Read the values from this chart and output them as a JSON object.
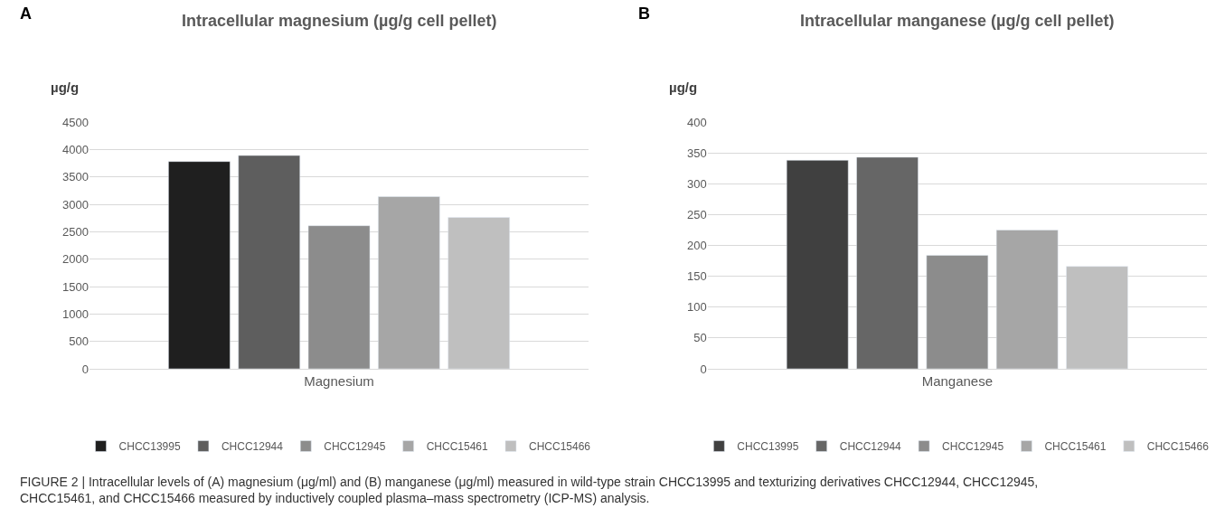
{
  "chart_data": [
    {
      "type": "bar",
      "title": "Intracellular magnesium (µg/g cell pellet)",
      "ylabel": "µg/g",
      "categories": [
        "Magnesium"
      ],
      "series": [
        {
          "name": "CHCC13995",
          "color": "#1f1f1f",
          "values": [
            3780
          ]
        },
        {
          "name": "CHCC12944",
          "color": "#5e5e5e",
          "values": [
            3890
          ]
        },
        {
          "name": "CHCC12945",
          "color": "#8c8c8c",
          "values": [
            2610
          ]
        },
        {
          "name": "CHCC15461",
          "color": "#a6a6a6",
          "values": [
            3140
          ]
        },
        {
          "name": "CHCC15466",
          "color": "#bfbfbf",
          "values": [
            2760
          ]
        }
      ],
      "ylim": [
        0,
        4500
      ],
      "yticks": [
        0,
        500,
        1000,
        1500,
        2000,
        2500,
        3000,
        3500,
        4000,
        4500
      ],
      "grid": "y",
      "legend": "bottom",
      "annotations": [
        "A",
        "FIGURE 2 | Intracellular levels of (A) magnesium (μg/ml) and (B) manganese (μg/ml) measured in wild-type strain CHCC13995 and texturizing derivatives CHCC12944, CHCC12945, CHCC15461, and CHCC15466 measured by inductively coupled plasma–mass spectrometry (ICP-MS) analysis."
      ]
    },
    {
      "type": "bar",
      "title": "Intracellular manganese (µg/g cell pellet)",
      "ylabel": "µg/g",
      "categories": [
        "Manganese"
      ],
      "series": [
        {
          "name": "CHCC13995",
          "color": "#404040",
          "values": [
            338
          ]
        },
        {
          "name": "CHCC12944",
          "color": "#666666",
          "values": [
            343
          ]
        },
        {
          "name": "CHCC12945",
          "color": "#8c8c8c",
          "values": [
            184
          ]
        },
        {
          "name": "CHCC15461",
          "color": "#a6a6a6",
          "values": [
            225
          ]
        },
        {
          "name": "CHCC15466",
          "color": "#bfbfbf",
          "values": [
            166
          ]
        }
      ],
      "ylim": [
        0,
        400
      ],
      "yticks": [
        0,
        50,
        100,
        150,
        200,
        250,
        300,
        350,
        400
      ],
      "grid": "y",
      "legend": "bottom",
      "annotations": [
        "B"
      ]
    }
  ]
}
